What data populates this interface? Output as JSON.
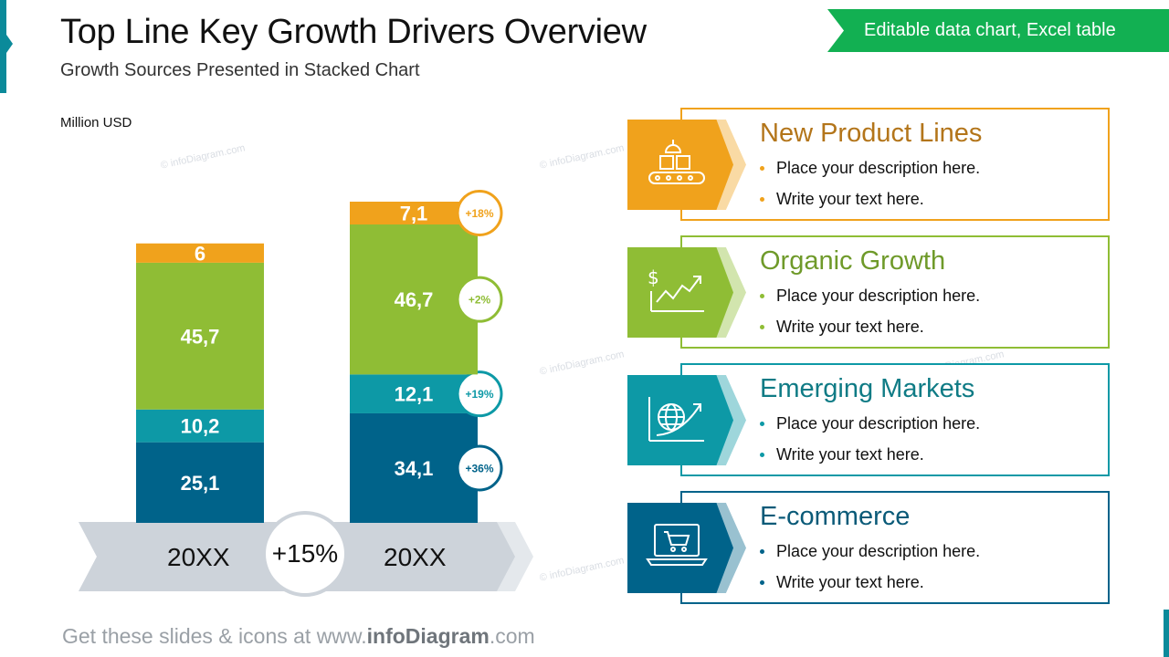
{
  "header": {
    "title": "Top Line Key Growth Drivers Overview",
    "subtitle": "Growth Sources Presented in Stacked Chart",
    "badge": "Editable data chart, Excel table"
  },
  "watermark": "© infoDiagram.com",
  "chart_data": {
    "type": "bar",
    "stacked": true,
    "ylabel": "Million USD",
    "categories": [
      "20XX",
      "20XX"
    ],
    "series": [
      {
        "name": "E-commerce",
        "values": [
          25.1,
          34.1
        ],
        "labels": [
          "25,1",
          "34,1"
        ],
        "growth": "+36%",
        "color": "#00638a"
      },
      {
        "name": "Emerging Markets",
        "values": [
          10.2,
          12.1
        ],
        "labels": [
          "10,2",
          "12,1"
        ],
        "growth": "+19%",
        "color": "#0d99a6"
      },
      {
        "name": "Organic Growth",
        "values": [
          45.7,
          46.7
        ],
        "labels": [
          "45,7",
          "46,7"
        ],
        "growth": "+2%",
        "color": "#8fbd35"
      },
      {
        "name": "New Product Lines",
        "values": [
          6,
          7.1
        ],
        "labels": [
          "6",
          "7,1"
        ],
        "growth": "+18%",
        "color": "#f0a21c"
      }
    ],
    "total_growth": "+15%"
  },
  "drivers": [
    {
      "name": "New Product Lines",
      "icon": "conveyor-boxes-icon",
      "color": "#f0a21c",
      "text_color": "#b3751a",
      "bullets": [
        "Place your description here.",
        "Write your text here."
      ]
    },
    {
      "name": "Organic Growth",
      "icon": "dollar-growth-chart-icon",
      "color": "#8fbd35",
      "text_color": "#6f9a2a",
      "bullets": [
        "Place your description here.",
        "Write your text here."
      ]
    },
    {
      "name": "Emerging Markets",
      "icon": "globe-chart-icon",
      "color": "#0d99a6",
      "text_color": "#0f7b85",
      "bullets": [
        "Place your description here.",
        "Write your text here."
      ]
    },
    {
      "name": "E-commerce",
      "icon": "laptop-cart-icon",
      "color": "#00638a",
      "text_color": "#0a5a78",
      "bullets": [
        "Place your description here.",
        "Write your text here."
      ]
    }
  ],
  "footer": {
    "prefix": "Get these slides & icons at www.",
    "brand": "infoDiagram",
    "suffix": ".com"
  }
}
